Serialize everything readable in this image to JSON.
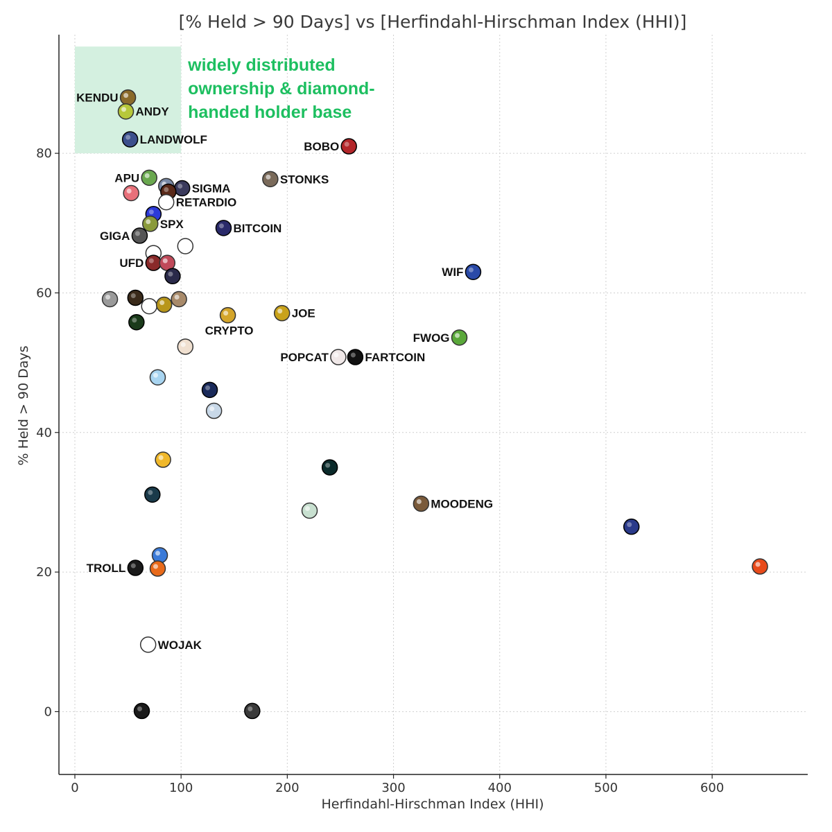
{
  "chart_data": {
    "type": "scatter",
    "title": "[% Held > 90 Days] vs [Herfindahl-Hirschman Index (HHI)]",
    "xlabel": "Herfindahl-Hirschman Index (HHI)",
    "ylabel": "% Held > 90 Days",
    "xlim": [
      -15,
      690
    ],
    "ylim": [
      -9,
      97
    ],
    "xticks": [
      0,
      100,
      200,
      300,
      400,
      500,
      600
    ],
    "yticks": [
      0,
      20,
      40,
      60,
      80
    ],
    "grid": true,
    "highlight_region": {
      "x_range": [
        0,
        100
      ],
      "y_range": [
        80,
        95.3
      ],
      "color": "#d4f0e0",
      "annotation": "widely distributed\nownership & diamond-\nhanded holder base",
      "annotation_color": "#1dbf60"
    },
    "points": [
      {
        "label": "KENDU",
        "x": 50,
        "y": 88,
        "color": "#8a6a2a",
        "label_side": "left"
      },
      {
        "label": "ANDY",
        "x": 48,
        "y": 86,
        "color": "#b7c83a",
        "label_side": "right"
      },
      {
        "label": "LANDWOLF",
        "x": 52,
        "y": 82,
        "color": "#3b4f8c",
        "label_side": "right"
      },
      {
        "label": "BOBO",
        "x": 258,
        "y": 81,
        "color": "#b3262a",
        "label_side": "left"
      },
      {
        "label": "APU",
        "x": 70,
        "y": 76.5,
        "color": "#6aa84f",
        "label_side": "left"
      },
      {
        "label": "SIGMA",
        "x": 101,
        "y": 75,
        "color": "#3a3a5c",
        "label_side": "right"
      },
      {
        "label": "",
        "x": 86,
        "y": 75.3,
        "color": "#7a8aa8",
        "label_side": ""
      },
      {
        "label": "",
        "x": 88,
        "y": 74.5,
        "color": "#5a2a1a",
        "label_side": ""
      },
      {
        "label": "STONKS",
        "x": 184,
        "y": 76.3,
        "color": "#7a6a5a",
        "label_side": "right"
      },
      {
        "label": "",
        "x": 53,
        "y": 74.3,
        "color": "#e8707a",
        "label_side": ""
      },
      {
        "label": "RETARDIO",
        "x": 86,
        "y": 73,
        "color": "#ffffff",
        "label_side": "right"
      },
      {
        "label": "",
        "x": 74,
        "y": 71.3,
        "color": "#2c3ad8",
        "label_side": ""
      },
      {
        "label": "SPX",
        "x": 71,
        "y": 69.9,
        "color": "#8a9a3a",
        "label_side": "right"
      },
      {
        "label": "BITCOIN",
        "x": 140,
        "y": 69.3,
        "color": "#2a2a6a",
        "label_side": "right"
      },
      {
        "label": "GIGA",
        "x": 61,
        "y": 68.2,
        "color": "#555555",
        "label_side": "left"
      },
      {
        "label": "",
        "x": 104,
        "y": 66.7,
        "color": "#ffffff",
        "label_side": ""
      },
      {
        "label": "",
        "x": 74,
        "y": 65.7,
        "color": "#ffffff",
        "label_side": ""
      },
      {
        "label": "UFD",
        "x": 74,
        "y": 64.3,
        "color": "#8a2a2a",
        "label_side": "left"
      },
      {
        "label": "",
        "x": 87,
        "y": 64.3,
        "color": "#c04a5a",
        "label_side": ""
      },
      {
        "label": "",
        "x": 92,
        "y": 62.4,
        "color": "#2a2a4a",
        "label_side": ""
      },
      {
        "label": "WIF",
        "x": 375,
        "y": 63,
        "color": "#2a4aa8",
        "label_side": "left"
      },
      {
        "label": "",
        "x": 33,
        "y": 59.1,
        "color": "#9a9a9a",
        "label_side": ""
      },
      {
        "label": "",
        "x": 57,
        "y": 59.3,
        "color": "#3a2a1a",
        "label_side": ""
      },
      {
        "label": "",
        "x": 70,
        "y": 58.1,
        "color": "#ffffff",
        "label_side": ""
      },
      {
        "label": "",
        "x": 84,
        "y": 58.3,
        "color": "#b8961a",
        "label_side": ""
      },
      {
        "label": "",
        "x": 98,
        "y": 59.1,
        "color": "#a88a6a",
        "label_side": ""
      },
      {
        "label": "",
        "x": 58,
        "y": 55.8,
        "color": "#1a3a1a",
        "label_side": ""
      },
      {
        "label": "CRYPTO",
        "x": 144,
        "y": 56.8,
        "color": "#d4a52a",
        "label_side": "below"
      },
      {
        "label": "JOE",
        "x": 195,
        "y": 57.1,
        "color": "#c9a21a",
        "label_side": "right"
      },
      {
        "label": "FWOG",
        "x": 362,
        "y": 53.6,
        "color": "#5aa83a",
        "label_side": "left"
      },
      {
        "label": "",
        "x": 104,
        "y": 52.3,
        "color": "#f0e0d0",
        "label_side": ""
      },
      {
        "label": "POPCAT",
        "x": 248,
        "y": 50.8,
        "color": "#f0e8e8",
        "label_side": "left"
      },
      {
        "label": "FARTCOIN",
        "x": 264,
        "y": 50.8,
        "color": "#111111",
        "label_side": "right"
      },
      {
        "label": "",
        "x": 78,
        "y": 47.9,
        "color": "#a8d4f0",
        "label_side": ""
      },
      {
        "label": "",
        "x": 127,
        "y": 46.1,
        "color": "#1a2a5a",
        "label_side": ""
      },
      {
        "label": "",
        "x": 131,
        "y": 43.1,
        "color": "#c8d8e8",
        "label_side": ""
      },
      {
        "label": "",
        "x": 83,
        "y": 36.1,
        "color": "#f0b82a",
        "label_side": ""
      },
      {
        "label": "",
        "x": 240,
        "y": 35,
        "color": "#0a2a2a",
        "label_side": ""
      },
      {
        "label": "",
        "x": 73,
        "y": 31.1,
        "color": "#1a3a4a",
        "label_side": ""
      },
      {
        "label": "MOODENG",
        "x": 326,
        "y": 29.8,
        "color": "#7a5a3a",
        "label_side": "right"
      },
      {
        "label": "",
        "x": 221,
        "y": 28.8,
        "color": "#c8e0d0",
        "label_side": ""
      },
      {
        "label": "",
        "x": 524,
        "y": 26.5,
        "color": "#2a3a8a",
        "label_side": ""
      },
      {
        "label": "",
        "x": 80,
        "y": 22.4,
        "color": "#3a7ad8",
        "label_side": ""
      },
      {
        "label": "TROLL",
        "x": 57,
        "y": 20.6,
        "color": "#1a1a1a",
        "label_side": "left"
      },
      {
        "label": "",
        "x": 78,
        "y": 20.5,
        "color": "#e86a1a",
        "label_side": ""
      },
      {
        "label": "",
        "x": 645,
        "y": 20.8,
        "color": "#e84a1a",
        "label_side": ""
      },
      {
        "label": "WOJAK",
        "x": 69,
        "y": 9.6,
        "color": "#ffffff",
        "label_side": "right"
      },
      {
        "label": "",
        "x": 63,
        "y": 0.1,
        "color": "#1a1a1a",
        "label_side": ""
      },
      {
        "label": "",
        "x": 167,
        "y": 0.1,
        "color": "#3a3a3a",
        "label_side": ""
      }
    ]
  }
}
